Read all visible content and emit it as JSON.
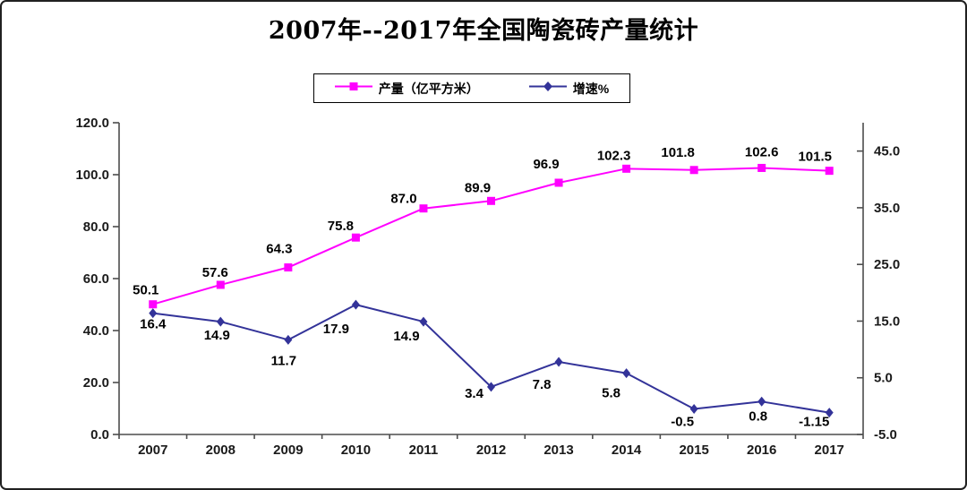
{
  "window": {
    "background": "#ffffff",
    "border_color": "#202020"
  },
  "chart_data": {
    "type": "line",
    "title": "2007年--2017年全国陶瓷砖产量统计",
    "categories": [
      "2007",
      "2008",
      "2009",
      "2010",
      "2011",
      "2012",
      "2013",
      "2014",
      "2015",
      "2016",
      "2017"
    ],
    "series": [
      {
        "name": "产量（亿平方米）",
        "axis": "left",
        "color": "#ff00ff",
        "marker": "square",
        "values": [
          50.1,
          57.6,
          64.3,
          75.8,
          87.0,
          89.9,
          96.9,
          102.3,
          101.8,
          102.6,
          101.5
        ],
        "labels": [
          "50.1",
          "57.6",
          "64.3",
          "75.8",
          "87.0",
          "89.9",
          "96.9",
          "102.3",
          "101.8",
          "102.6",
          "101.5"
        ]
      },
      {
        "name": "增速%",
        "axis": "right",
        "color": "#333399",
        "marker": "diamond",
        "values": [
          16.4,
          14.9,
          11.7,
          17.9,
          14.9,
          3.4,
          7.8,
          5.8,
          -0.5,
          0.8,
          -1.15
        ],
        "labels": [
          "16.4",
          "14.9",
          "11.7",
          "17.9",
          "14.9",
          "3.4",
          "7.8",
          "5.8",
          "-0.5",
          "0.8",
          "-1.15"
        ]
      }
    ],
    "left_axis": {
      "range": [
        0,
        120
      ],
      "ticks": [
        120,
        100,
        80,
        60,
        40,
        20,
        0
      ],
      "labels": [
        "120.0",
        "100.0",
        "80.0",
        "60.0",
        "40.0",
        "20.0",
        "0.0"
      ]
    },
    "right_axis": {
      "range": [
        -5,
        50
      ],
      "ticks": [
        45,
        35,
        25,
        15,
        5,
        -5
      ],
      "labels": [
        "45.0",
        "35.0",
        "25.0",
        "15.0",
        "5.0",
        "-5.0"
      ]
    },
    "legend_position": "top",
    "grid": false,
    "colors": {
      "axis": "#4d4d4d",
      "tick_text": "#1a1a1a",
      "label_text": "#000000"
    }
  }
}
